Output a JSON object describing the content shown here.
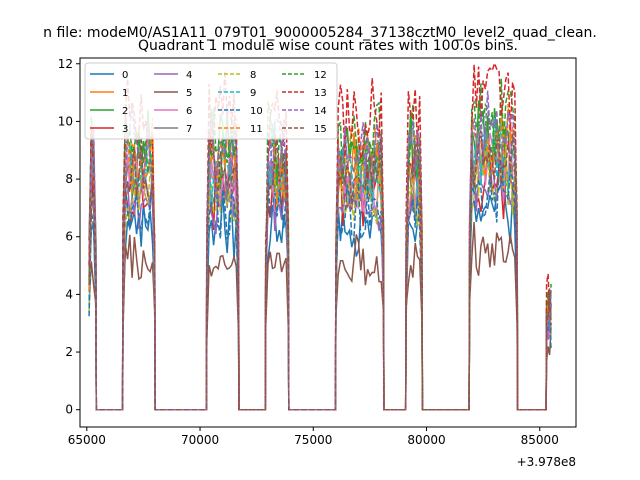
{
  "figure": {
    "suptitle": "n file: modeM0/AS1A11_079T01_9000005284_37138cztM0_level2_quad_clean.",
    "title": "Quadrant 1 module wise count rates with 100.0s bins.",
    "x_offset_label": "+3.978e8"
  },
  "chart_data": {
    "type": "line",
    "title": "Quadrant 1 module wise count rates with 100.0s bins.",
    "xlabel": "",
    "ylabel": "",
    "x_offset": 397800000,
    "xlim": [
      64700,
      86600
    ],
    "ylim": [
      -0.6,
      12.2
    ],
    "x_ticks": [
      65000,
      70000,
      75000,
      80000,
      85000
    ],
    "x_tick_labels": [
      "65000",
      "70000",
      "75000",
      "80000",
      "85000"
    ],
    "y_ticks": [
      0,
      2,
      4,
      6,
      8,
      10,
      12
    ],
    "y_tick_labels": [
      "0",
      "2",
      "4",
      "6",
      "8",
      "10",
      "12"
    ],
    "grid": false,
    "legend_position": "top-left",
    "legend_columns": 4,
    "segments": [
      {
        "start": 65100,
        "end": 65400,
        "rise_end": 65100,
        "fall_start": 65300
      },
      {
        "start": 65400,
        "end": 66600,
        "zero": true
      },
      {
        "start": 66600,
        "end": 68000
      },
      {
        "start": 68000,
        "end": 70300,
        "zero": true
      },
      {
        "start": 70300,
        "end": 71700
      },
      {
        "start": 71700,
        "end": 72900,
        "zero": true
      },
      {
        "start": 72900,
        "end": 73900
      },
      {
        "start": 73900,
        "end": 76000,
        "zero": true
      },
      {
        "start": 76000,
        "end": 78100
      },
      {
        "start": 78100,
        "end": 79100,
        "zero": true
      },
      {
        "start": 79100,
        "end": 79800
      },
      {
        "start": 79800,
        "end": 81900,
        "zero": true
      },
      {
        "start": 81900,
        "end": 84000
      },
      {
        "start": 84000,
        "end": 85300,
        "zero": true
      },
      {
        "start": 85300,
        "end": 85500
      }
    ],
    "series": [
      {
        "name": "0",
        "color": "#1f77b4",
        "dash": "solid",
        "level": 6.2
      },
      {
        "name": "1",
        "color": "#ff7f0e",
        "dash": "solid",
        "level": 8.0
      },
      {
        "name": "2",
        "color": "#2ca02c",
        "dash": "solid",
        "level": 8.6
      },
      {
        "name": "3",
        "color": "#d62728",
        "dash": "solid",
        "level": 7.2
      },
      {
        "name": "4",
        "color": "#9467bd",
        "dash": "solid",
        "level": 7.0
      },
      {
        "name": "5",
        "color": "#8c564b",
        "dash": "solid",
        "level": 5.0
      },
      {
        "name": "6",
        "color": "#e377c2",
        "dash": "solid",
        "level": 7.6
      },
      {
        "name": "7",
        "color": "#7f7f7f",
        "dash": "solid",
        "level": 7.9
      },
      {
        "name": "8",
        "color": "#bcbd22",
        "dash": "dashed",
        "level": 7.4
      },
      {
        "name": "9",
        "color": "#17becf",
        "dash": "dashed",
        "level": 8.2
      },
      {
        "name": "10",
        "color": "#1f77b4",
        "dash": "dashed",
        "level": 6.8
      },
      {
        "name": "11",
        "color": "#ff7f0e",
        "dash": "dashed",
        "level": 8.4
      },
      {
        "name": "12",
        "color": "#2ca02c",
        "dash": "dashed",
        "level": 9.0
      },
      {
        "name": "13",
        "color": "#d62728",
        "dash": "dashed",
        "level": 9.8
      },
      {
        "name": "14",
        "color": "#9467bd",
        "dash": "dashed",
        "level": 8.8
      },
      {
        "name": "15",
        "color": "#8c564b",
        "dash": "dashed",
        "level": 8.1
      }
    ]
  }
}
